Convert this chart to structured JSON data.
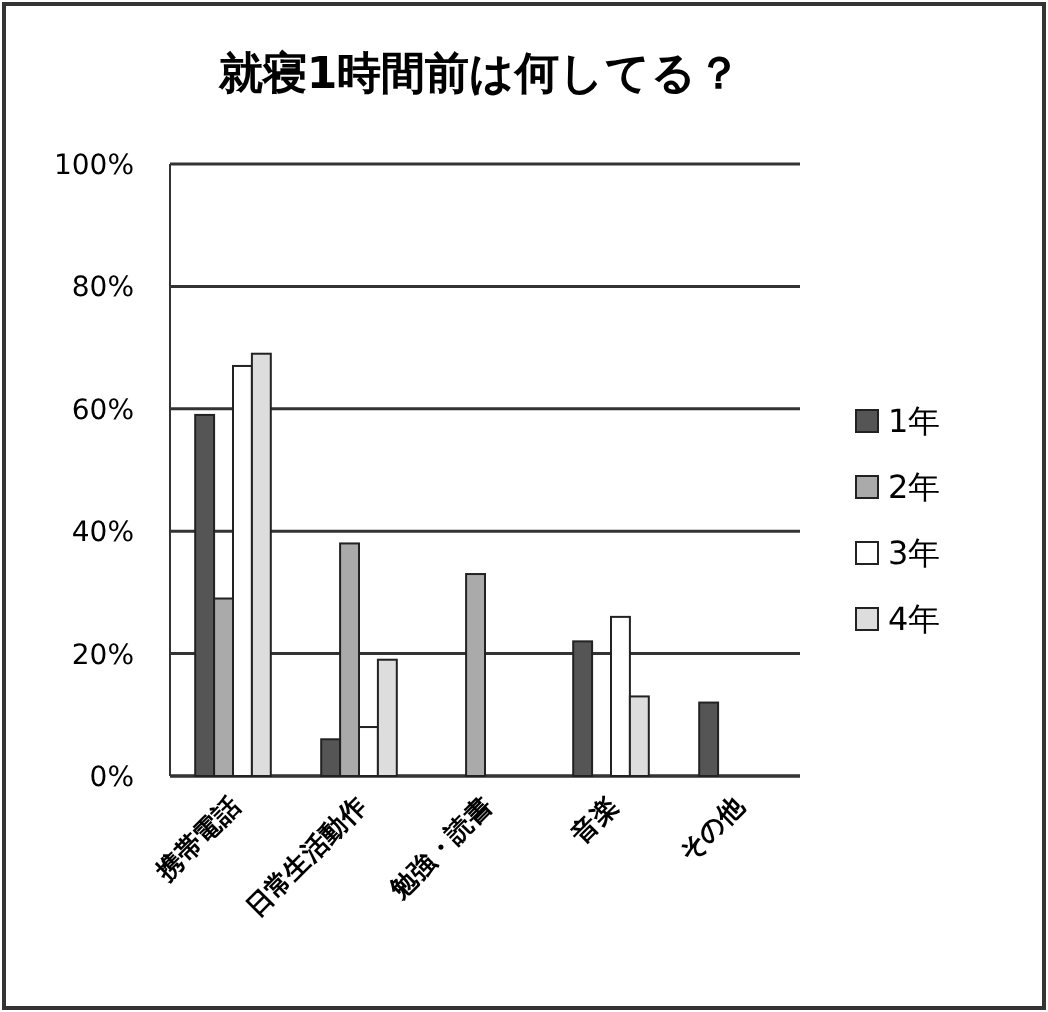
{
  "chart_data": {
    "type": "bar",
    "title": "就寝1時間前は何してる？",
    "categories": [
      "携帯電話",
      "日常生活動作",
      "勉強・読書",
      "音楽",
      "その他"
    ],
    "series": [
      {
        "name": "1年",
        "color": "#555555",
        "values": [
          59,
          6,
          null,
          22,
          12
        ]
      },
      {
        "name": "2年",
        "color": "#aaaaaa",
        "values": [
          29,
          38,
          33,
          null,
          null
        ]
      },
      {
        "name": "3年",
        "color": "#ffffff",
        "values": [
          67,
          8,
          null,
          26,
          null
        ]
      },
      {
        "name": "4年",
        "color": "#dddddd",
        "values": [
          69,
          19,
          null,
          13,
          null
        ]
      }
    ],
    "ylim": [
      0,
      100
    ],
    "yticks": [
      {
        "value": 0,
        "label": "0%"
      },
      {
        "value": 20,
        "label": "20%"
      },
      {
        "value": 40,
        "label": "40%"
      },
      {
        "value": 60,
        "label": "60%"
      },
      {
        "value": 80,
        "label": "80%"
      },
      {
        "value": 100,
        "label": "100%"
      }
    ],
    "grid": "y",
    "legend": "right"
  }
}
